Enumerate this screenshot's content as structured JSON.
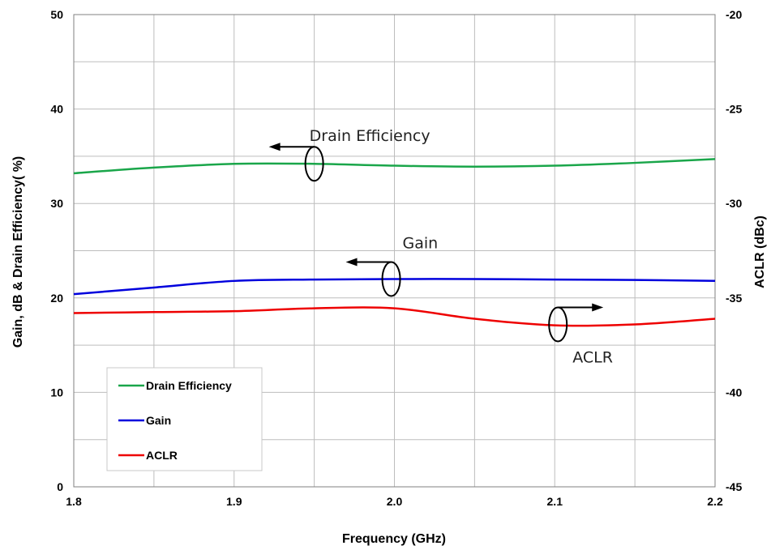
{
  "chart_data": {
    "type": "line",
    "xlabel": "Frequency (GHz)",
    "ylabel": "Gain, dB & Drain Efficiency( %)",
    "y2label": "ACLR  (dBc)",
    "xlim": [
      1.8,
      2.2
    ],
    "ylim": [
      0,
      50
    ],
    "y2lim": [
      -45,
      -20
    ],
    "x_ticks": [
      "1.8",
      "1.9",
      "2.0",
      "2.1",
      "2.2"
    ],
    "y_ticks": [
      "0",
      "10",
      "20",
      "30",
      "40",
      "50"
    ],
    "y2_ticks": [
      "-45",
      "-40",
      "-35",
      "-30",
      "-25",
      "-20"
    ],
    "grid": true,
    "legend_position": "bottom-left",
    "series": [
      {
        "name": "Drain Efficiency",
        "axis": "left",
        "color": "#1aa64a",
        "x": [
          1.8,
          1.85,
          1.9,
          1.95,
          2.0,
          2.05,
          2.1,
          2.15,
          2.2
        ],
        "y": [
          33.2,
          33.8,
          34.2,
          34.2,
          34.0,
          33.9,
          34.0,
          34.3,
          34.7
        ]
      },
      {
        "name": "Gain",
        "axis": "left",
        "color": "#0000dd",
        "x": [
          1.8,
          1.85,
          1.9,
          1.95,
          2.0,
          2.05,
          2.1,
          2.15,
          2.2
        ],
        "y": [
          20.4,
          21.1,
          21.8,
          21.95,
          22.0,
          22.0,
          21.95,
          21.9,
          21.8
        ]
      },
      {
        "name": "ACLR",
        "axis": "right",
        "color": "#ee0000",
        "x": [
          1.8,
          1.85,
          1.9,
          1.95,
          2.0,
          2.05,
          2.1,
          2.15,
          2.2
        ],
        "y": [
          -35.8,
          -35.75,
          -35.7,
          -35.55,
          -35.55,
          -36.1,
          -36.45,
          -36.4,
          -36.1
        ]
      }
    ],
    "annotations": [
      {
        "text": "Drain Efficiency",
        "x": 1.95,
        "y": 34.2,
        "arrow": "left"
      },
      {
        "text": "Gain",
        "x": 1.998,
        "y": 22.0,
        "arrow": "left"
      },
      {
        "text": "ACLR",
        "x": 2.102,
        "y": -36.4,
        "arrow": "right"
      }
    ]
  }
}
